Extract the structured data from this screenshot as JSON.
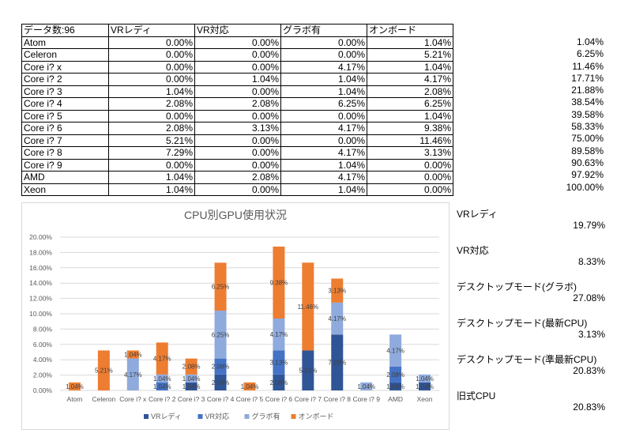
{
  "table": {
    "headers": [
      "データ数:96",
      "VRレディ",
      "VR対応",
      "グラボ有",
      "オンボード"
    ],
    "rows": [
      {
        "name": "Atom",
        "vals": [
          "0.00%",
          "0.00%",
          "0.00%",
          "1.04%"
        ],
        "cum": "1.04%"
      },
      {
        "name": "Celeron",
        "vals": [
          "0.00%",
          "0.00%",
          "0.00%",
          "5.21%"
        ],
        "cum": "6.25%"
      },
      {
        "name": "Core i? x",
        "vals": [
          "0.00%",
          "0.00%",
          "4.17%",
          "1.04%"
        ],
        "cum": "11.46%"
      },
      {
        "name": "Core i? 2",
        "vals": [
          "0.00%",
          "1.04%",
          "1.04%",
          "4.17%"
        ],
        "cum": "17.71%"
      },
      {
        "name": "Core i? 3",
        "vals": [
          "1.04%",
          "0.00%",
          "1.04%",
          "2.08%"
        ],
        "cum": "21.88%"
      },
      {
        "name": "Core i? 4",
        "vals": [
          "2.08%",
          "2.08%",
          "6.25%",
          "6.25%"
        ],
        "cum": "38.54%"
      },
      {
        "name": "Core i? 5",
        "vals": [
          "0.00%",
          "0.00%",
          "0.00%",
          "1.04%"
        ],
        "cum": "39.58%"
      },
      {
        "name": "Core i? 6",
        "vals": [
          "2.08%",
          "3.13%",
          "4.17%",
          "9.38%"
        ],
        "cum": "58.33%"
      },
      {
        "name": "Core i? 7",
        "vals": [
          "5.21%",
          "0.00%",
          "0.00%",
          "11.46%"
        ],
        "cum": "75.00%"
      },
      {
        "name": "Core i? 8",
        "vals": [
          "7.29%",
          "0.00%",
          "4.17%",
          "3.13%"
        ],
        "cum": "89.58%"
      },
      {
        "name": "Core i? 9",
        "vals": [
          "0.00%",
          "0.00%",
          "1.04%",
          "0.00%"
        ],
        "cum": "90.63%"
      },
      {
        "name": "AMD",
        "vals": [
          "1.04%",
          "2.08%",
          "4.17%",
          "0.00%"
        ],
        "cum": "97.92%"
      },
      {
        "name": "Xeon",
        "vals": [
          "1.04%",
          "0.00%",
          "1.04%",
          "0.00%"
        ],
        "cum": "100.00%"
      }
    ]
  },
  "summary": [
    {
      "label": "VRレディ",
      "value": "19.79%"
    },
    {
      "label": "VR対応",
      "value": "8.33%"
    },
    {
      "label": "デスクトップモード(グラボ)",
      "value": "27.08%"
    },
    {
      "label": "デスクトップモード(最新CPU)",
      "value": "3.13%"
    },
    {
      "label": "デスクトップモード(準最新CPU)",
      "value": "20.83%"
    },
    {
      "label": "旧式CPU",
      "value": "20.83%"
    }
  ],
  "chart_data": {
    "type": "bar",
    "stacked": true,
    "title": "CPU別GPU使用状況",
    "categories": [
      "Atom",
      "Celeron",
      "Core i? x",
      "Core i? 2",
      "Core i? 3",
      "Core i? 4",
      "Core i? 5",
      "Core i? 6",
      "Core i? 7",
      "Core i? 8",
      "Core i? 9",
      "AMD",
      "Xeon"
    ],
    "series": [
      {
        "name": "VRレディ",
        "color": "#2f5597",
        "values": [
          0,
          0,
          0,
          0,
          1.04,
          2.08,
          0,
          2.08,
          5.21,
          7.29,
          0,
          1.04,
          1.04
        ]
      },
      {
        "name": "VR対応",
        "color": "#4472c4",
        "values": [
          0,
          0,
          0,
          1.04,
          0,
          2.08,
          0,
          3.13,
          0,
          0,
          0,
          2.08,
          0
        ]
      },
      {
        "name": "グラボ有",
        "color": "#8faadc",
        "values": [
          0,
          0,
          4.17,
          1.04,
          1.04,
          6.25,
          0,
          4.17,
          0,
          4.17,
          1.04,
          4.17,
          1.04
        ]
      },
      {
        "name": "オンボード",
        "color": "#ed7d31",
        "values": [
          1.04,
          5.21,
          1.04,
          4.17,
          2.08,
          6.25,
          1.04,
          9.38,
          11.46,
          3.13,
          0,
          0,
          0
        ]
      }
    ],
    "ylim": [
      0,
      20
    ],
    "yticks": [
      "0.00%",
      "2.00%",
      "4.00%",
      "6.00%",
      "8.00%",
      "10.00%",
      "12.00%",
      "14.00%",
      "16.00%",
      "18.00%",
      "20.00%"
    ],
    "legend_position": "bottom"
  }
}
